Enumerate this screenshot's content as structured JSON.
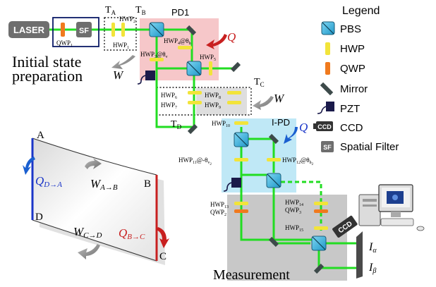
{
  "colors": {
    "beam": "#22dd22",
    "pbs": "#33b9e3",
    "hwp": "#f2e43a",
    "qwp": "#f07a1e",
    "mirror": "#3d4a4a",
    "pd_region": "#f6c7c9",
    "ipd_region": "#bfe8f6",
    "measure_region": "#c8c8c8",
    "tc_region": "#d8d8d8",
    "blue_edge": "#1a35c8",
    "red_edge": "#c82020",
    "laser_box": "#6e6e6e",
    "prep_box": "#0b1a66"
  },
  "source": {
    "laser": "LASER",
    "sf": "SF",
    "qwp1": "QWP",
    "qwp1_sub": "1"
  },
  "prep_label": [
    "Initial state",
    "preparation"
  ],
  "ta": {
    "main": "T",
    "sub": "A"
  },
  "tb": {
    "main": "T",
    "sub": "B"
  },
  "tc": {
    "main": "T",
    "sub": "C"
  },
  "td": {
    "main": "T",
    "sub": "D"
  },
  "pd1": "PD1",
  "ipd": "I-PD",
  "measurement": "Measurement",
  "hwp2": {
    "main": "HWP",
    "sub": "2"
  },
  "hwp1": {
    "main": "HWP",
    "sub": "1"
  },
  "hwp4": {
    "main": "HWP",
    "sub": "4",
    "at": "@θ",
    "at_sub": "h"
  },
  "hwp3": {
    "main": "HWP",
    "sub": "3",
    "at": "@θ",
    "at_sub": "v"
  },
  "hwp5": {
    "main": "HWP",
    "sub": "5"
  },
  "hwp6": {
    "main": "HWP",
    "sub": "6"
  },
  "hwp7": {
    "main": "HWP",
    "sub": "7"
  },
  "hwp8": {
    "main": "HWP",
    "sub": "8"
  },
  "hwp9": {
    "main": "HWP",
    "sub": "9"
  },
  "hwp10": {
    "main": "HWP",
    "sub": "10"
  },
  "hwp11": {
    "main": "HWP",
    "sub": "11",
    "at": "@-θ",
    "at_sub": "v",
    "at_sub2": "2"
  },
  "hwp12": {
    "main": "HWP",
    "sub": "12",
    "at": "@θ",
    "at_sub": "h",
    "at_sub2": "2"
  },
  "hwp13": {
    "main": "HWP",
    "sub": "13"
  },
  "hwp14": {
    "main": "HWP",
    "sub": "14"
  },
  "hwp15": {
    "main": "HWP",
    "sub": "15"
  },
  "qwp2": {
    "main": "QWP",
    "sub": "2"
  },
  "qwp3": {
    "main": "QWP",
    "sub": "3"
  },
  "q_symbol": "Q",
  "w_symbol": "W",
  "ccd": "CCD",
  "i_alpha": {
    "main": "I",
    "sub": "α"
  },
  "i_beta": {
    "main": "I",
    "sub": "β"
  },
  "legend": {
    "title": "Legend",
    "items": [
      "PBS",
      "HWP",
      "QWP",
      "Mirror",
      "PZT",
      "CCD",
      "Spatial Filter"
    ],
    "ccd_icon": "CCD",
    "sf_icon": "SF"
  },
  "cycle": {
    "corner_a": "A",
    "corner_b": "B",
    "corner_c": "C",
    "corner_d": "D",
    "q_da": {
      "main": "Q",
      "sub": "D→A"
    },
    "w_ab": {
      "main": "W",
      "sub": "A→B"
    },
    "w_cd": {
      "main": "W",
      "sub": "C→D"
    },
    "q_bc": {
      "main": "Q",
      "sub": "B→C"
    }
  }
}
